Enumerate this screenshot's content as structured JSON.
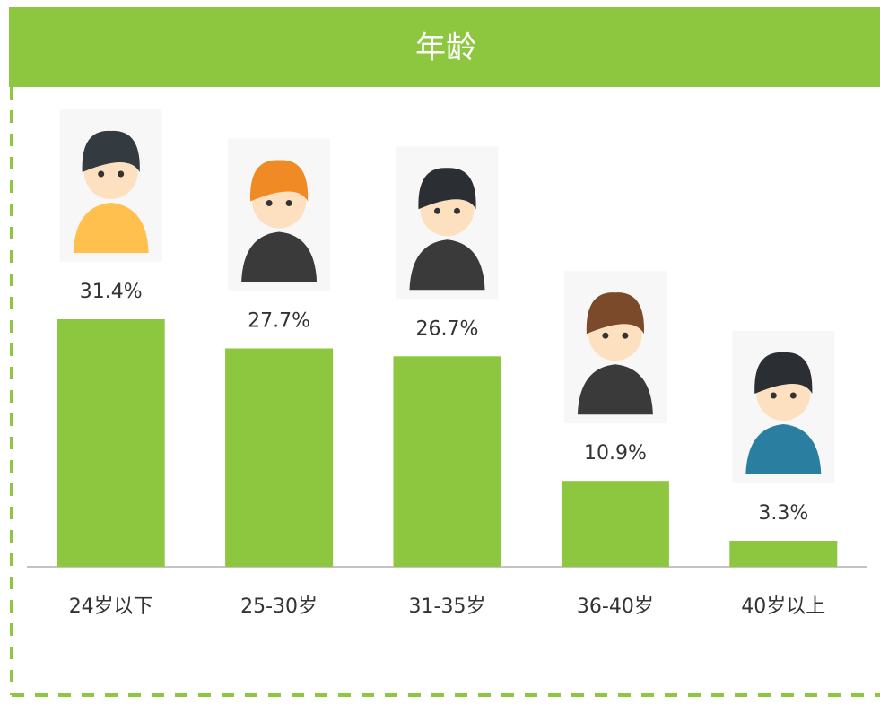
{
  "chart_data": {
    "type": "bar",
    "title": "年龄",
    "categories": [
      "24岁以下",
      "25-30岁",
      "31-35岁",
      "36-40岁",
      "40岁以上"
    ],
    "values": [
      31.4,
      27.7,
      26.7,
      10.9,
      3.3
    ],
    "value_labels": [
      "31.4%",
      "27.7%",
      "26.7%",
      "10.9%",
      "3.3%"
    ],
    "color": "#8dc63f"
  }
}
